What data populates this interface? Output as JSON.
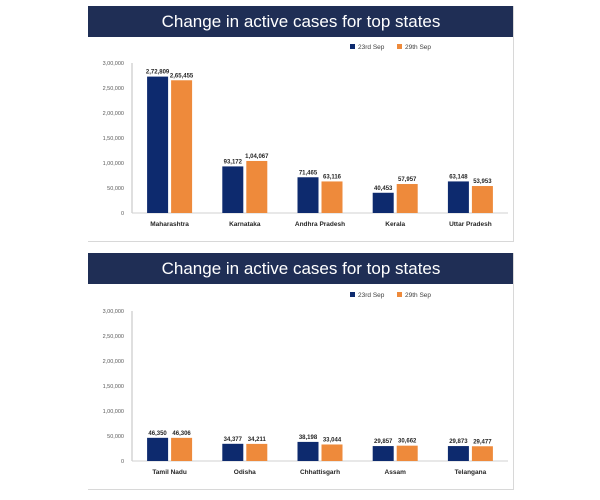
{
  "colors": {
    "title_bar": "#1f2e55",
    "series_23": "#0d2a6e",
    "series_29": "#ee8a3b"
  },
  "chart_data": [
    {
      "type": "bar",
      "title": "Change in active cases for top states",
      "categories": [
        "Maharashtra",
        "Karnataka",
        "Andhra Pradesh",
        "Kerala",
        "Uttar Pradesh"
      ],
      "series": [
        {
          "name": "23rd Sep",
          "values": [
            272809,
            93172,
            71465,
            40453,
            63148
          ],
          "labels": [
            "2,72,809",
            "93,172",
            "71,465",
            "40,453",
            "63,148"
          ]
        },
        {
          "name": "29th Sep",
          "values": [
            265455,
            104067,
            63116,
            57957,
            53953
          ],
          "labels": [
            "2,65,455",
            "1,04,067",
            "63,116",
            "57,957",
            "53,953"
          ]
        }
      ],
      "yticks": [
        0,
        50000,
        100000,
        150000,
        200000,
        250000,
        300000
      ],
      "ytick_labels": [
        "0",
        "50,000",
        "1,00,000",
        "1,50,000",
        "2,00,000",
        "2,50,000",
        "3,00,000"
      ],
      "ylim": [
        0,
        300000
      ],
      "legend": "top-right",
      "grid": false
    },
    {
      "type": "bar",
      "title": "Change in active cases for top states",
      "categories": [
        "Tamil Nadu",
        "Odisha",
        "Chhattisgarh",
        "Assam",
        "Telangana"
      ],
      "series": [
        {
          "name": "23rd Sep",
          "values": [
            46350,
            34377,
            38198,
            29857,
            29873
          ],
          "labels": [
            "46,350",
            "34,377",
            "38,198",
            "29,857",
            "29,873"
          ]
        },
        {
          "name": "29th Sep",
          "values": [
            46306,
            34211,
            33044,
            30662,
            29477
          ],
          "labels": [
            "46,306",
            "34,211",
            "33,044",
            "30,662",
            "29,477"
          ]
        }
      ],
      "yticks": [
        0,
        50000,
        100000,
        150000,
        200000,
        250000,
        300000
      ],
      "ytick_labels": [
        "0",
        "50,000",
        "1,00,000",
        "1,50,000",
        "2,00,000",
        "2,50,000",
        "3,00,000"
      ],
      "ylim": [
        0,
        300000
      ],
      "legend": "top-right",
      "grid": false
    }
  ]
}
